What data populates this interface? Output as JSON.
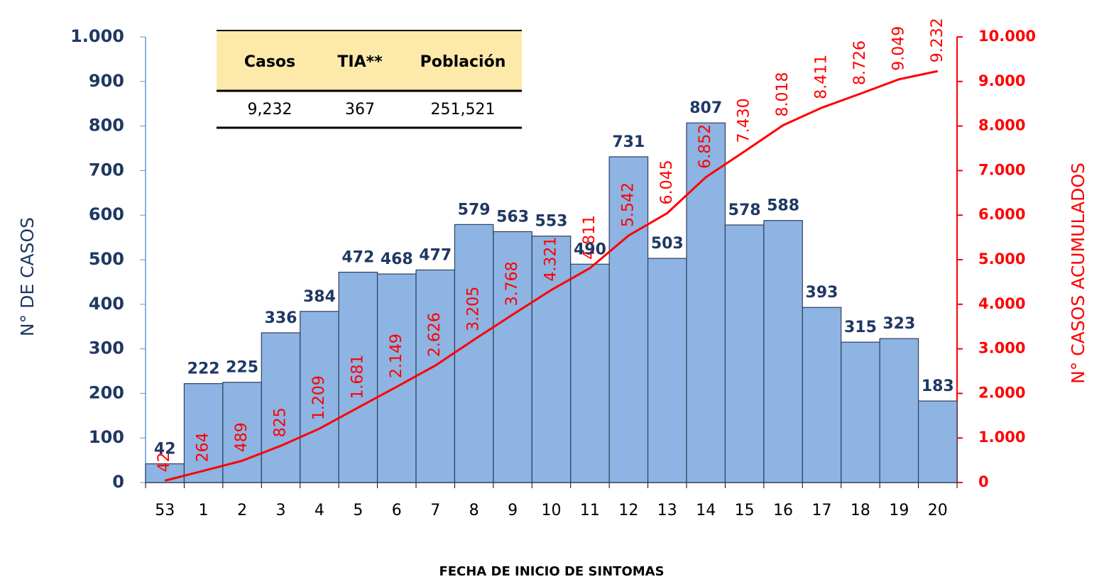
{
  "chart_data": {
    "type": "bar_line",
    "x_label": "FECHA DE INICIO DE SINTOMAS",
    "y_label": "N° DE CASOS",
    "y2_label": "N° CASOS ACUMULADOS",
    "categories": [
      "53",
      "1",
      "2",
      "3",
      "4",
      "5",
      "6",
      "7",
      "8",
      "9",
      "10",
      "11",
      "12",
      "13",
      "14",
      "15",
      "16",
      "17",
      "18",
      "19",
      "20"
    ],
    "series": [
      {
        "name": "Casos",
        "type": "bar",
        "color": "#8db4e2",
        "values": [
          42,
          222,
          225,
          336,
          384,
          472,
          468,
          477,
          579,
          563,
          553,
          490,
          731,
          503,
          807,
          578,
          588,
          393,
          315,
          323,
          183
        ]
      },
      {
        "name": "Acumulados",
        "type": "line",
        "axis": "y2",
        "color": "#ff0000",
        "values": [
          42,
          264,
          489,
          825,
          1209,
          1681,
          2149,
          2626,
          3205,
          3768,
          4321,
          4811,
          5542,
          6045,
          6852,
          7430,
          8018,
          8411,
          8726,
          9049,
          9232
        ],
        "value_labels": [
          "42",
          "264",
          "489",
          "825",
          "1.209",
          "1.681",
          "2.149",
          "2.626",
          "3.205",
          "3.768",
          "4.321",
          "4.811",
          "5.542",
          "6.045",
          "6.852",
          "7.430",
          "8.018",
          "8.411",
          "8.726",
          "9.049",
          "9.232"
        ]
      }
    ],
    "ylim": [
      0,
      1000
    ],
    "yticks": [
      0,
      100,
      200,
      300,
      400,
      500,
      600,
      700,
      800,
      900,
      {
        "value": 1000,
        "label": "1.000"
      }
    ],
    "y2lim": [
      0,
      10000
    ],
    "y2ticks": [
      0,
      {
        "value": 1000,
        "label": "1.000"
      },
      {
        "value": 2000,
        "label": "2.000"
      },
      {
        "value": 3000,
        "label": "3.000"
      },
      {
        "value": 4000,
        "label": "4.000"
      },
      {
        "value": 5000,
        "label": "5.000"
      },
      {
        "value": 6000,
        "label": "6.000"
      },
      {
        "value": 7000,
        "label": "7.000"
      },
      {
        "value": 8000,
        "label": "8.000"
      },
      {
        "value": 9000,
        "label": "9.000"
      },
      {
        "value": 10000,
        "label": "10.000"
      }
    ],
    "table": {
      "columns": [
        "Casos",
        "TIA**",
        "Población"
      ],
      "rows": [
        [
          "9,232",
          "367",
          "251,521"
        ]
      ]
    }
  }
}
